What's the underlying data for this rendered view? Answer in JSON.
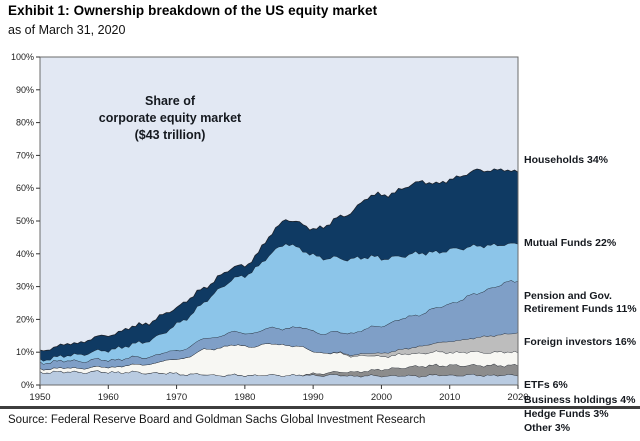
{
  "header": {
    "title": "Exhibit 1: Ownership breakdown of the US equity market",
    "subtitle": "as of March 31, 2020"
  },
  "annotation": {
    "line1": "Share of",
    "line2": "corporate equity market",
    "line3": "($43 trillion)"
  },
  "source": {
    "text": "Source: Federal Reserve Board and Goldman Sachs Global Investment Research"
  },
  "right_labels": [
    {
      "name": "households",
      "lines": [
        "Households 34%"
      ]
    },
    {
      "name": "mutual-funds",
      "lines": [
        "Mutual Funds 22%"
      ]
    },
    {
      "name": "pension-funds",
      "lines": [
        "Pension and Gov.",
        "Retirement Funds 11%"
      ]
    },
    {
      "name": "foreign-investors",
      "lines": [
        "Foreign investors 16%"
      ]
    },
    {
      "name": "etfs",
      "lines": [
        "ETFs 6%"
      ]
    },
    {
      "name": "business-holdings",
      "lines": [
        "Business holdings 4%"
      ]
    },
    {
      "name": "hedge-funds",
      "lines": [
        "Hedge Funds 3%"
      ]
    },
    {
      "name": "other",
      "lines": [
        "Other 3%"
      ]
    }
  ],
  "chart_data": {
    "type": "area",
    "stacked": true,
    "title": "Share of corporate equity market ($43 trillion)",
    "subtitle": "as of March 31, 2020",
    "xlim": [
      1950,
      2020
    ],
    "ylim": [
      0,
      100
    ],
    "xticks": [
      "1950",
      "1960",
      "1970",
      "1980",
      "1990",
      "2000",
      "2010",
      "2020"
    ],
    "yticks": [
      "0%",
      "10%",
      "20%",
      "30%",
      "40%",
      "50%",
      "60%",
      "70%",
      "80%",
      "90%",
      "100%"
    ],
    "grid": false,
    "legend_position": "right",
    "x_keyframes": [
      1950,
      1955,
      1960,
      1965,
      1968,
      1970,
      1972,
      1974,
      1976,
      1978,
      1980,
      1982,
      1984,
      1986,
      1988,
      1990,
      1992,
      1994,
      1996,
      1998,
      2000,
      2002,
      2004,
      2006,
      2008,
      2010,
      2012,
      2014,
      2016,
      2018,
      2020
    ],
    "series": [
      {
        "name": "Other",
        "share_2020": 3,
        "color": "#b9cbe1",
        "values": [
          4.0,
          4.0,
          4.0,
          3.8,
          3.6,
          3.5,
          3.3,
          3.2,
          3.0,
          3.0,
          3.0,
          3.0,
          3.0,
          3.0,
          3.0,
          3.0,
          3.0,
          3.0,
          2.8,
          2.8,
          2.8,
          2.8,
          2.8,
          2.8,
          3.0,
          3.0,
          3.0,
          3.0,
          3.0,
          3.0,
          3.0
        ]
      },
      {
        "name": "Hedge Funds",
        "share_2020": 3,
        "color": "#8c8c8c",
        "values": [
          0,
          0,
          0,
          0,
          0,
          0,
          0,
          0,
          0,
          0,
          0,
          0,
          0,
          0,
          0,
          0.5,
          0.7,
          1.0,
          1.2,
          1.5,
          2.0,
          2.3,
          2.7,
          3.0,
          3.0,
          3.0,
          3.0,
          3.0,
          3.0,
          3.0,
          3.0
        ]
      },
      {
        "name": "Business holdings",
        "share_2020": 4,
        "color": "#f7f7f3",
        "values": [
          1.0,
          1.2,
          1.5,
          2.5,
          3.5,
          4.5,
          5.5,
          7.5,
          8.5,
          9.0,
          9.0,
          9.0,
          9.5,
          9.5,
          8.5,
          7.0,
          6.0,
          5.5,
          5.0,
          4.5,
          4.0,
          4.0,
          4.0,
          4.0,
          4.0,
          4.0,
          4.0,
          4.0,
          4.0,
          4.0,
          4.0
        ]
      },
      {
        "name": "ETFs",
        "share_2020": 6,
        "color": "#bdbdbd",
        "values": [
          0,
          0,
          0,
          0,
          0,
          0,
          0,
          0,
          0,
          0,
          0,
          0,
          0,
          0,
          0,
          0,
          0,
          0.2,
          0.4,
          0.7,
          1.0,
          1.3,
          1.7,
          2.2,
          2.8,
          3.3,
          3.8,
          4.5,
          5.0,
          5.5,
          6.0
        ]
      },
      {
        "name": "Foreign investors",
        "share_2020": 16,
        "color": "#7f9fc7",
        "values": [
          2.0,
          2.2,
          2.2,
          2.2,
          2.4,
          2.6,
          3.0,
          3.3,
          3.6,
          3.8,
          4.0,
          4.3,
          4.7,
          5.3,
          5.7,
          6.2,
          6.0,
          6.2,
          6.8,
          7.5,
          8.5,
          9.0,
          9.5,
          10.0,
          10.5,
          11.5,
          12.5,
          13.5,
          14.5,
          15.5,
          16.0
        ]
      },
      {
        "name": "Pension and Gov. Retirement Funds",
        "share_2020": 11,
        "color": "#8cc5e9",
        "values": [
          0.8,
          1.8,
          3.0,
          4.5,
          6.0,
          8.0,
          9.5,
          11.0,
          14.0,
          16.0,
          17.5,
          20.0,
          23.0,
          26.0,
          24.0,
          23.0,
          23.0,
          22.5,
          22.5,
          22.0,
          20.5,
          19.5,
          19.0,
          18.5,
          17.0,
          16.5,
          15.5,
          14.5,
          13.0,
          12.0,
          11.0
        ]
      },
      {
        "name": "Mutual Funds",
        "share_2020": 22,
        "color": "#0f3a63",
        "values": [
          2.8,
          3.5,
          4.5,
          5.5,
          5.5,
          5.0,
          5.5,
          4.0,
          4.0,
          3.5,
          3.0,
          4.0,
          6.0,
          7.5,
          7.5,
          8.0,
          10.0,
          12.5,
          15.0,
          18.0,
          19.5,
          19.5,
          21.0,
          22.0,
          20.5,
          21.5,
          22.0,
          23.0,
          23.0,
          22.5,
          22.0
        ]
      }
    ],
    "background_series": {
      "name": "Households",
      "share_2020": 34,
      "color": "#e2e8f3"
    }
  }
}
